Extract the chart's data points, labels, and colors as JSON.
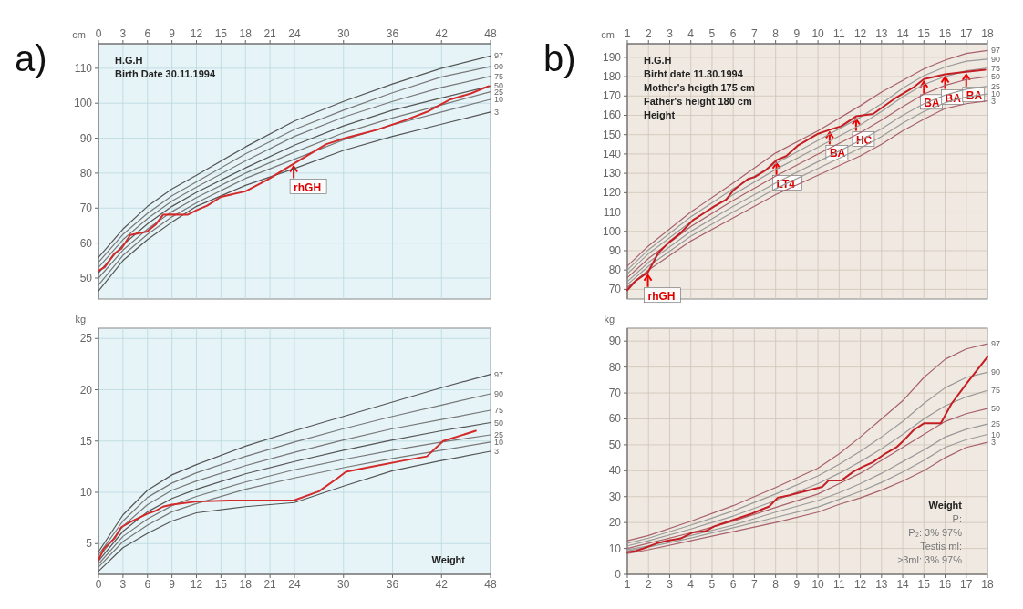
{
  "chart_data": [
    {
      "type": "line",
      "title": "a)",
      "ylabel": "cm",
      "xlim": [
        0,
        48
      ],
      "xticks": [
        0,
        3,
        6,
        9,
        12,
        15,
        18,
        21,
        24,
        30,
        36,
        42,
        48
      ],
      "ylim": [
        44,
        117
      ],
      "yticks": [
        50,
        60,
        70,
        80,
        90,
        100,
        110
      ],
      "grid": true,
      "annotations": [
        "H.G.H",
        "Birth Date 30.11.1994",
        {
          "text": "rhGH",
          "x": 23.9,
          "y": 82.7
        }
      ],
      "series": [
        {
          "name": "97",
          "color": "#555555",
          "x": [
            0,
            3,
            6,
            9,
            12,
            18,
            24,
            30,
            36,
            42,
            48
          ],
          "values": [
            55.9,
            64,
            70.5,
            75.5,
            79.4,
            87.5,
            94.9,
            100.5,
            105.5,
            110,
            113.5
          ]
        },
        {
          "name": "90",
          "color": "#777777",
          "x": [
            0,
            3,
            6,
            9,
            12,
            18,
            24,
            30,
            36,
            42,
            48
          ],
          "values": [
            54.5,
            62.5,
            68.5,
            73.5,
            77.5,
            85.5,
            92.5,
            98,
            103,
            107.5,
            110.5
          ]
        },
        {
          "name": "75",
          "color": "#777777",
          "x": [
            0,
            3,
            6,
            9,
            12,
            18,
            24,
            30,
            36,
            42,
            48
          ],
          "values": [
            53,
            61,
            67,
            72,
            76,
            83.5,
            90.5,
            96,
            100.5,
            104.5,
            107.7
          ]
        },
        {
          "name": "50",
          "color": "#555555",
          "x": [
            0,
            3,
            6,
            9,
            12,
            18,
            24,
            30,
            36,
            42,
            48
          ],
          "values": [
            51.5,
            59.5,
            65.5,
            70.5,
            74.5,
            81.5,
            88,
            93.5,
            98,
            101.5,
            104.9
          ]
        },
        {
          "name": "25",
          "color": "#777777",
          "x": [
            0,
            3,
            6,
            9,
            12,
            18,
            24,
            30,
            36,
            42,
            48
          ],
          "values": [
            50,
            58,
            64,
            69,
            73,
            80,
            86,
            91.5,
            95.8,
            99.5,
            103.3
          ]
        },
        {
          "name": "10",
          "color": "#777777",
          "x": [
            0,
            3,
            6,
            9,
            12,
            18,
            24,
            30,
            36,
            42,
            48
          ],
          "values": [
            48,
            56.5,
            62.5,
            67.5,
            71.5,
            78.5,
            84,
            89.5,
            93.8,
            97.5,
            101.1
          ]
        },
        {
          "name": "3",
          "color": "#555555",
          "x": [
            0,
            3,
            6,
            9,
            12,
            18,
            24,
            30,
            36,
            42,
            48
          ],
          "values": [
            46.3,
            55,
            61,
            66,
            70.5,
            76.5,
            81.3,
            86.5,
            90.5,
            94,
            97.5
          ]
        },
        {
          "color": "#d42a2a",
          "x": [
            0,
            0.75,
            1.95,
            2.8,
            3.9,
            5.95,
            7,
            7.9,
            9,
            10.9,
            12,
            13.3,
            15,
            18,
            20.7,
            23.9,
            27.9,
            30.3,
            34.1,
            37.4,
            40.2,
            43.1,
            45.6,
            47.8
          ],
          "values": [
            52.1,
            53.1,
            57,
            58.4,
            62.3,
            63.3,
            65.3,
            68.1,
            68.2,
            68.1,
            69.4,
            70.7,
            73.2,
            74.8,
            78.1,
            82.7,
            88.3,
            90.1,
            92.4,
            95,
            97.5,
            101.1,
            102.8,
            104.9
          ]
        }
      ]
    },
    {
      "type": "line",
      "ylabel": "kg",
      "xlim": [
        0,
        48
      ],
      "xticks": [
        0,
        3,
        6,
        9,
        12,
        15,
        18,
        21,
        24,
        30,
        36,
        42,
        48
      ],
      "ylim": [
        2,
        26
      ],
      "yticks": [
        5,
        10,
        15,
        20,
        25
      ],
      "grid": true,
      "annotations": [
        "Weight"
      ],
      "series": [
        {
          "name": "97",
          "color": "#555555",
          "x": [
            0,
            3,
            6,
            9,
            12,
            18,
            24,
            30,
            36,
            42,
            48
          ],
          "values": [
            4.2,
            7.8,
            10.2,
            11.7,
            12.7,
            14.5,
            16,
            17.4,
            18.8,
            20.2,
            21.5
          ]
        },
        {
          "name": "90",
          "color": "#777777",
          "x": [
            0,
            3,
            6,
            9,
            12,
            18,
            24,
            30,
            36,
            42,
            48
          ],
          "values": [
            3.9,
            7.2,
            9.5,
            10.9,
            11.9,
            13.5,
            14.9,
            16.2,
            17.4,
            18.5,
            19.6
          ]
        },
        {
          "name": "75",
          "color": "#777777",
          "x": [
            0,
            3,
            6,
            9,
            12,
            18,
            24,
            30,
            36,
            42,
            48
          ],
          "values": [
            3.6,
            6.7,
            8.8,
            10.2,
            11.1,
            12.6,
            13.9,
            15.1,
            16.2,
            17.1,
            18
          ]
        },
        {
          "name": "50",
          "color": "#555555",
          "x": [
            0,
            3,
            6,
            9,
            12,
            18,
            24,
            30,
            36,
            42,
            48
          ],
          "values": [
            3.3,
            6.2,
            8.1,
            9.4,
            10.3,
            11.8,
            13,
            14.1,
            15.1,
            16,
            16.8
          ]
        },
        {
          "name": "25",
          "color": "#777777",
          "x": [
            0,
            3,
            6,
            9,
            12,
            18,
            24,
            30,
            36,
            42,
            48
          ],
          "values": [
            3,
            5.7,
            7.4,
            8.7,
            9.6,
            11,
            12.2,
            13.2,
            14.1,
            14.9,
            15.6
          ]
        },
        {
          "name": "10",
          "color": "#777777",
          "x": [
            0,
            3,
            6,
            9,
            12,
            18,
            24,
            30,
            36,
            42,
            48
          ],
          "values": [
            2.7,
            5.2,
            6.8,
            8.1,
            8.9,
            10.3,
            11.4,
            12.4,
            13.3,
            14.1,
            14.9
          ]
        },
        {
          "name": "3",
          "color": "#555555",
          "x": [
            0,
            3,
            6,
            9,
            12,
            18,
            24,
            30,
            36,
            42,
            48
          ],
          "values": [
            2.3,
            4.6,
            6,
            7.2,
            8,
            8.6,
            9,
            10.6,
            12.1,
            13.1,
            14
          ]
        },
        {
          "color": "#d42a2a",
          "x": [
            0,
            0.65,
            1.95,
            2.8,
            3.9,
            5.95,
            7,
            7.9,
            9,
            12,
            16,
            18,
            23.9,
            27,
            29.3,
            30.3,
            32.8,
            37.4,
            40.2,
            42.2,
            46.2
          ],
          "values": [
            3.4,
            4.5,
            5.5,
            6.6,
            7.1,
            7.9,
            8.2,
            8.6,
            8.8,
            9.1,
            9.2,
            9.2,
            9.2,
            10.1,
            11.4,
            12,
            12.4,
            13.1,
            13.5,
            15,
            16
          ]
        }
      ]
    },
    {
      "type": "line",
      "title": "b)",
      "ylabel": "cm",
      "xlim": [
        1,
        18
      ],
      "xticks": [
        1,
        2,
        3,
        4,
        5,
        6,
        7,
        8,
        9,
        10,
        11,
        12,
        13,
        14,
        15,
        16,
        17,
        18
      ],
      "ylim": [
        65,
        197
      ],
      "yticks": [
        70,
        80,
        90,
        100,
        110,
        120,
        130,
        140,
        150,
        160,
        170,
        180,
        190
      ],
      "grid": true,
      "annotations": [
        "H.G.H",
        "Birht date 11.30.1994",
        "Mother's heigth 175 cm",
        "Father's height  180 cm",
        "Height",
        {
          "text": "rhGH",
          "x": 1.97,
          "y": 78.8
        },
        {
          "text": "LT4",
          "x": 8.04,
          "y": 136.8
        },
        {
          "text": "BA",
          "x": 10.55,
          "y": 152.5
        },
        {
          "text": "HC",
          "x": 11.8,
          "y": 159.5
        },
        {
          "text": "BA",
          "x": 15,
          "y": 178.7
        },
        {
          "text": "BA",
          "x": 16,
          "y": 181.2
        },
        {
          "text": "BA",
          "x": 17,
          "y": 182.5
        }
      ],
      "series": [
        {
          "name": "97",
          "color": "#a8606c",
          "x": [
            1,
            2,
            4,
            6,
            8,
            10,
            12,
            13,
            14,
            15,
            16,
            17,
            18
          ],
          "values": [
            82,
            92.5,
            110,
            125,
            140.5,
            152,
            165,
            172,
            178,
            184,
            188.5,
            192,
            193.5
          ]
        },
        {
          "name": "90",
          "color": "#999999",
          "x": [
            1,
            2,
            4,
            6,
            8,
            10,
            12,
            13,
            14,
            15,
            16,
            17,
            18
          ],
          "values": [
            80,
            90.5,
            107.5,
            122,
            135,
            147,
            159,
            166,
            174,
            180.5,
            185,
            188,
            189
          ]
        },
        {
          "name": "75",
          "color": "#999999",
          "x": [
            1,
            2,
            4,
            6,
            8,
            10,
            12,
            13,
            14,
            15,
            16,
            17,
            18
          ],
          "values": [
            78,
            88.5,
            105,
            119,
            132,
            143.5,
            155,
            162,
            169.5,
            176,
            180,
            183,
            184.5
          ]
        },
        {
          "name": "50",
          "color": "#a8606c",
          "x": [
            1,
            2,
            4,
            6,
            8,
            10,
            12,
            13,
            14,
            15,
            16,
            17,
            18
          ],
          "values": [
            76,
            86,
            102.5,
            116,
            128.5,
            140,
            151,
            157.5,
            164.5,
            171,
            175.5,
            178.5,
            180
          ]
        },
        {
          "name": "25",
          "color": "#999999",
          "x": [
            1,
            2,
            4,
            6,
            8,
            10,
            12,
            13,
            14,
            15,
            16,
            17,
            18
          ],
          "values": [
            74,
            84,
            100,
            113,
            125,
            136,
            147,
            153,
            160,
            166,
            170.5,
            173.5,
            175
          ]
        },
        {
          "name": "10",
          "color": "#999999",
          "x": [
            1,
            2,
            4,
            6,
            8,
            10,
            12,
            13,
            14,
            15,
            16,
            17,
            18
          ],
          "values": [
            72.5,
            82,
            97.5,
            110,
            122,
            132.5,
            143,
            149,
            156,
            162,
            166.5,
            169.5,
            171
          ]
        },
        {
          "name": "3",
          "color": "#a8606c",
          "x": [
            1,
            2,
            4,
            6,
            8,
            10,
            12,
            13,
            14,
            15,
            16,
            17,
            18
          ],
          "values": [
            71,
            80,
            95,
            107,
            119,
            129,
            139,
            145,
            152,
            158,
            163.5,
            166,
            167.5
          ]
        },
        {
          "color": "#c41e24",
          "x": [
            1,
            1.4,
            1.97,
            2.47,
            2.97,
            3.5,
            4.1,
            4.6,
            5.1,
            5.67,
            6,
            6.7,
            7,
            7.53,
            8.04,
            8.5,
            9.07,
            9.97,
            10.55,
            11.1,
            11.8,
            12.6,
            13.6,
            14.5,
            15,
            16,
            17,
            17.9
          ],
          "values": [
            69.6,
            74.5,
            78.8,
            88.9,
            94.4,
            99,
            105.8,
            109.3,
            112.9,
            116.4,
            121.2,
            127.1,
            128,
            131.6,
            136.8,
            138.9,
            144.5,
            150.3,
            152.5,
            154.4,
            159.5,
            160.7,
            168.5,
            174.4,
            178.7,
            181.2,
            182.5,
            183.6
          ]
        }
      ]
    },
    {
      "type": "line",
      "ylabel": "kg",
      "xlim": [
        1,
        18
      ],
      "xticks": [
        1,
        2,
        3,
        4,
        5,
        6,
        7,
        8,
        9,
        10,
        11,
        12,
        13,
        14,
        15,
        16,
        17,
        18
      ],
      "ylim": [
        0,
        95
      ],
      "yticks": [
        0,
        10,
        20,
        30,
        40,
        50,
        60,
        70,
        80,
        90
      ],
      "grid": true,
      "annotations": [
        "Weight",
        "P:",
        "P₂:  3%  97%",
        "Testis ml:",
        "≥3ml:  3%  97%"
      ],
      "series": [
        {
          "name": "97",
          "color": "#a8606c",
          "x": [
            1,
            2,
            4,
            6,
            8,
            10,
            11,
            12,
            13,
            14,
            15,
            16,
            17,
            18
          ],
          "values": [
            13,
            15,
            20.5,
            26.5,
            33.5,
            41,
            46.5,
            53,
            60,
            67,
            76,
            83,
            87,
            89
          ]
        },
        {
          "name": "90",
          "color": "#999999",
          "x": [
            1,
            2,
            4,
            6,
            8,
            10,
            11,
            12,
            13,
            14,
            15,
            16,
            17,
            18
          ],
          "values": [
            12,
            14,
            19,
            24.5,
            31,
            38,
            42.5,
            47.5,
            53,
            59,
            66,
            72,
            76,
            78
          ]
        },
        {
          "name": "75",
          "color": "#999999",
          "x": [
            1,
            2,
            4,
            6,
            8,
            10,
            11,
            12,
            13,
            14,
            15,
            16,
            17,
            18
          ],
          "values": [
            11,
            13,
            17.5,
            22.5,
            28.5,
            35,
            39,
            43.5,
            48.5,
            54,
            60,
            65,
            68.5,
            71
          ]
        },
        {
          "name": "50",
          "color": "#a8606c",
          "x": [
            1,
            2,
            4,
            6,
            8,
            10,
            11,
            12,
            13,
            14,
            15,
            16,
            17,
            18
          ],
          "values": [
            10,
            12,
            16,
            20.5,
            25.8,
            31,
            35,
            39,
            44,
            49,
            54,
            59,
            62,
            64
          ]
        },
        {
          "name": "25",
          "color": "#999999",
          "x": [
            1,
            2,
            4,
            6,
            8,
            10,
            11,
            12,
            13,
            14,
            15,
            16,
            17,
            18
          ],
          "values": [
            9.5,
            11,
            15,
            19,
            24,
            28.5,
            31.5,
            35,
            39,
            43.5,
            48,
            53,
            56,
            58
          ]
        },
        {
          "name": "10",
          "color": "#999999",
          "x": [
            1,
            2,
            4,
            6,
            8,
            10,
            11,
            12,
            13,
            14,
            15,
            16,
            17,
            18
          ],
          "values": [
            9,
            10.5,
            14,
            18,
            22,
            26,
            29,
            32,
            35.5,
            39.5,
            44,
            49,
            52,
            54
          ]
        },
        {
          "name": "3",
          "color": "#a8606c",
          "x": [
            1,
            2,
            4,
            6,
            8,
            10,
            11,
            12,
            13,
            14,
            15,
            16,
            17,
            18
          ],
          "values": [
            8,
            9.5,
            13,
            16.5,
            20,
            24,
            27,
            29.5,
            32.5,
            36,
            40,
            45,
            49,
            51
          ]
        },
        {
          "color": "#c41e24",
          "x": [
            1,
            1.4,
            1.9,
            2.4,
            2.9,
            3.5,
            4.1,
            4.7,
            5.1,
            5.5,
            6.1,
            6.8,
            7.3,
            7.7,
            8.1,
            8.6,
            9.1,
            9.7,
            10.2,
            10.5,
            11.1,
            11.7,
            12.1,
            12.6,
            13.1,
            13.7,
            14.1,
            14.5,
            15,
            15.8,
            16.3,
            17,
            18
          ],
          "values": [
            8.5,
            9,
            10.4,
            12,
            13,
            13.8,
            16.2,
            16.7,
            18.5,
            19.6,
            21.3,
            23.2,
            24.9,
            26.2,
            29.6,
            30.4,
            31.5,
            32.7,
            33.8,
            36.2,
            36.2,
            39.8,
            41.5,
            43.3,
            46.2,
            49,
            52.1,
            55.6,
            58.3,
            58.3,
            65.8,
            73.5,
            84
          ]
        }
      ]
    }
  ]
}
